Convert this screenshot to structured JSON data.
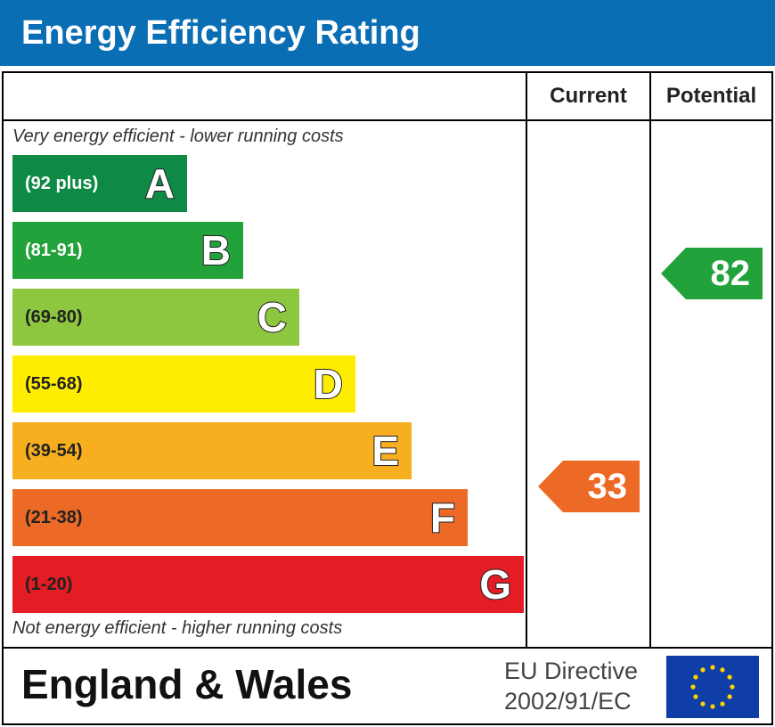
{
  "header": {
    "title": "Energy Efficiency Rating"
  },
  "table": {
    "col_current": "Current",
    "col_potential": "Potential",
    "top_caption": "Very energy efficient - lower running costs",
    "bottom_caption": "Not energy efficient - higher running costs"
  },
  "chart_data": {
    "type": "bar",
    "title": "Energy Efficiency Rating",
    "categories": [
      "A",
      "B",
      "C",
      "D",
      "E",
      "F",
      "G"
    ],
    "ranges": [
      "(92 plus)",
      "(81-91)",
      "(69-80)",
      "(55-68)",
      "(39-54)",
      "(21-38)",
      "(1-20)"
    ],
    "colors": [
      "#0f8a45",
      "#22a23a",
      "#8dc63f",
      "#ffed00",
      "#f7ae1f",
      "#ec6a25",
      "#e31d23"
    ],
    "range_text_colors": [
      "#ffffff",
      "#ffffff",
      "#222222",
      "#222222",
      "#222222",
      "#222222",
      "#222222"
    ],
    "current": {
      "value": 33,
      "band": "F",
      "color": "#ec6a25"
    },
    "potential": {
      "value": 82,
      "band": "B",
      "color": "#22a23a"
    }
  },
  "footer": {
    "region": "England & Wales",
    "directive_line1": "EU Directive",
    "directive_line2": "2002/91/EC"
  },
  "icons": {
    "flag": "eu-flag-icon"
  }
}
